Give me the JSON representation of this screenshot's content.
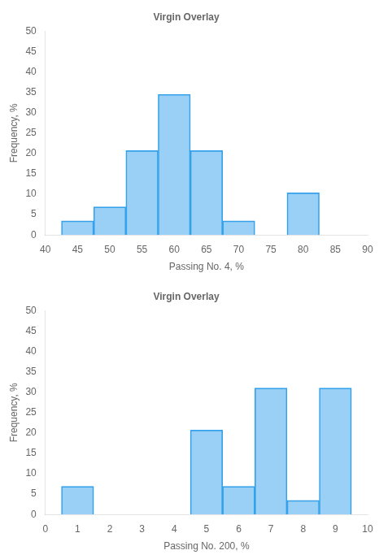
{
  "chart_data": [
    {
      "type": "bar",
      "title": "Virgin Overlay",
      "xlabel": "Passing No. 4, %",
      "ylabel": "Frequency, %",
      "x": [
        45,
        50,
        55,
        60,
        65,
        70,
        80
      ],
      "values": [
        3.45,
        6.9,
        20.69,
        34.48,
        20.69,
        3.45,
        10.34
      ],
      "xlim": [
        40,
        90
      ],
      "ylim": [
        0,
        50
      ],
      "xticks": [
        40,
        45,
        50,
        55,
        60,
        65,
        70,
        75,
        80,
        85,
        90
      ],
      "yticks": [
        0,
        5,
        10,
        15,
        20,
        25,
        30,
        35,
        40,
        45,
        50
      ],
      "grid": false
    },
    {
      "type": "bar",
      "title": "Virgin Overlay",
      "xlabel": "Passing No. 200, %",
      "ylabel": "Frequency, %",
      "x": [
        1,
        5,
        6,
        7,
        8,
        9
      ],
      "values": [
        6.9,
        20.69,
        6.9,
        31.03,
        3.45,
        31.03
      ],
      "xlim": [
        0,
        10
      ],
      "ylim": [
        0,
        50
      ],
      "xticks": [
        0,
        1,
        2,
        3,
        4,
        5,
        6,
        7,
        8,
        9,
        10
      ],
      "yticks": [
        0,
        5,
        10,
        15,
        20,
        25,
        30,
        35,
        40,
        45,
        50
      ],
      "grid": false
    }
  ]
}
